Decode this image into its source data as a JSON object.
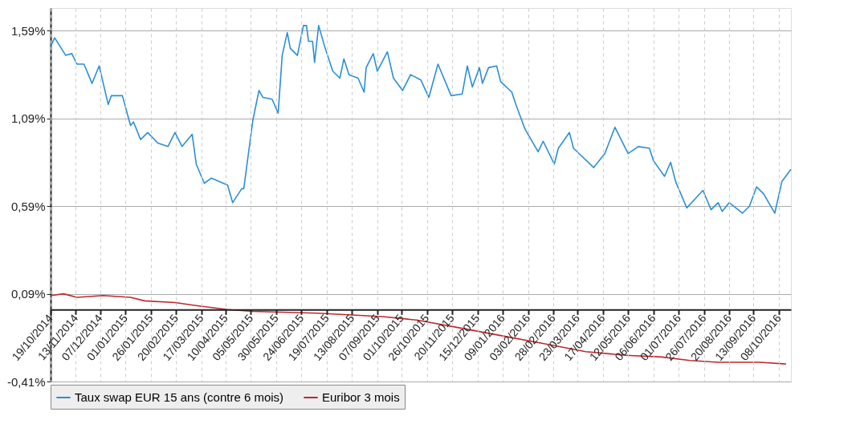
{
  "chart_data": {
    "type": "line",
    "xlim": [
      "2014-10-19",
      "2016-10-20"
    ],
    "ylim": [
      -0.41,
      1.72
    ],
    "yticks": [
      {
        "value": 1.59,
        "label": "1,59%"
      },
      {
        "value": 1.09,
        "label": "1,09%"
      },
      {
        "value": 0.59,
        "label": "0,59%"
      },
      {
        "value": 0.09,
        "label": "0,09%"
      },
      {
        "value": -0.41,
        "label": "-0,41%"
      }
    ],
    "xticks": [
      {
        "value": "2014-10-19",
        "label": "19/10/2014"
      },
      {
        "value": "2014-11-13",
        "label": "13/11/2014"
      },
      {
        "value": "2014-12-07",
        "label": "07/12/2014"
      },
      {
        "value": "2015-01-01",
        "label": "01/01/2015"
      },
      {
        "value": "2015-01-26",
        "label": "26/01/2015"
      },
      {
        "value": "2015-02-20",
        "label": "20/02/2015"
      },
      {
        "value": "2015-03-17",
        "label": "17/03/2015"
      },
      {
        "value": "2015-04-10",
        "label": "10/04/2015"
      },
      {
        "value": "2015-05-05",
        "label": "05/05/2015"
      },
      {
        "value": "2015-05-30",
        "label": "30/05/2015"
      },
      {
        "value": "2015-06-24",
        "label": "24/06/2015"
      },
      {
        "value": "2015-07-19",
        "label": "19/07/2015"
      },
      {
        "value": "2015-08-13",
        "label": "13/08/2015"
      },
      {
        "value": "2015-09-07",
        "label": "07/09/2015"
      },
      {
        "value": "2015-10-01",
        "label": "01/10/2015"
      },
      {
        "value": "2015-10-26",
        "label": "26/10/2015"
      },
      {
        "value": "2015-11-20",
        "label": "20/11/2015"
      },
      {
        "value": "2015-12-15",
        "label": "15/12/2015"
      },
      {
        "value": "2016-01-09",
        "label": "09/01/2016"
      },
      {
        "value": "2016-02-03",
        "label": "03/02/2016"
      },
      {
        "value": "2016-02-28",
        "label": "28/02/2016"
      },
      {
        "value": "2016-03-23",
        "label": "23/03/2016"
      },
      {
        "value": "2016-04-17",
        "label": "17/04/2016"
      },
      {
        "value": "2016-05-12",
        "label": "12/05/2016"
      },
      {
        "value": "2016-06-06",
        "label": "06/06/2016"
      },
      {
        "value": "2016-07-01",
        "label": "01/07/2016"
      },
      {
        "value": "2016-07-26",
        "label": "26/07/2016"
      },
      {
        "value": "2016-08-20",
        "label": "20/08/2016"
      },
      {
        "value": "2016-09-13",
        "label": "13/09/2016"
      },
      {
        "value": "2016-10-08",
        "label": "08/10/2016"
      }
    ],
    "grid": true,
    "legend": "bottom",
    "series": [
      {
        "name": "Taux swap EUR 15 ans (contre 6 mois)",
        "color": "#2b8fd6",
        "x": [
          "2014-10-19",
          "2014-10-23",
          "2014-11-03",
          "2014-11-09",
          "2014-11-14",
          "2014-11-21",
          "2014-11-29",
          "2014-12-06",
          "2014-12-15",
          "2014-12-18",
          "2014-12-29",
          "2015-01-06",
          "2015-01-09",
          "2015-01-16",
          "2015-01-23",
          "2015-02-02",
          "2015-02-12",
          "2015-02-19",
          "2015-02-26",
          "2015-03-08",
          "2015-03-12",
          "2015-03-20",
          "2015-03-27",
          "2015-04-12",
          "2015-04-17",
          "2015-04-26",
          "2015-04-28",
          "2015-05-07",
          "2015-05-13",
          "2015-05-17",
          "2015-05-26",
          "2015-06-01",
          "2015-06-05",
          "2015-06-10",
          "2015-06-13",
          "2015-06-20",
          "2015-06-26",
          "2015-06-29",
          "2015-07-01",
          "2015-07-05",
          "2015-07-07",
          "2015-07-11",
          "2015-07-17",
          "2015-07-25",
          "2015-08-01",
          "2015-08-05",
          "2015-08-10",
          "2015-08-19",
          "2015-08-25",
          "2015-08-27",
          "2015-09-03",
          "2015-09-07",
          "2015-09-17",
          "2015-09-23",
          "2015-10-02",
          "2015-10-10",
          "2015-10-20",
          "2015-10-28",
          "2015-11-06",
          "2015-11-19",
          "2015-11-30",
          "2015-12-05",
          "2015-12-10",
          "2015-12-17",
          "2015-12-20",
          "2015-12-26",
          "2016-01-03",
          "2016-01-07",
          "2016-01-18",
          "2016-01-22",
          "2016-01-31",
          "2016-02-13",
          "2016-02-18",
          "2016-02-29",
          "2016-03-04",
          "2016-03-15",
          "2016-03-19",
          "2016-04-08",
          "2016-04-19",
          "2016-04-29",
          "2016-05-12",
          "2016-05-22",
          "2016-06-02",
          "2016-06-06",
          "2016-06-17",
          "2016-06-23",
          "2016-06-28",
          "2016-07-09",
          "2016-07-25",
          "2016-08-02",
          "2016-08-09",
          "2016-08-13",
          "2016-08-20",
          "2016-09-02",
          "2016-09-09",
          "2016-09-16",
          "2016-09-23",
          "2016-10-04",
          "2016-10-11",
          "2016-10-20"
        ],
        "values": [
          1.5,
          1.55,
          1.45,
          1.46,
          1.4,
          1.4,
          1.29,
          1.39,
          1.17,
          1.22,
          1.22,
          1.05,
          1.07,
          0.97,
          1.01,
          0.95,
          0.93,
          1.01,
          0.93,
          1.0,
          0.83,
          0.72,
          0.75,
          0.71,
          0.61,
          0.69,
          0.69,
          1.08,
          1.25,
          1.21,
          1.2,
          1.12,
          1.45,
          1.58,
          1.49,
          1.45,
          1.62,
          1.62,
          1.53,
          1.53,
          1.41,
          1.62,
          1.5,
          1.36,
          1.32,
          1.43,
          1.34,
          1.32,
          1.24,
          1.38,
          1.46,
          1.36,
          1.47,
          1.32,
          1.25,
          1.34,
          1.31,
          1.21,
          1.4,
          1.22,
          1.23,
          1.39,
          1.27,
          1.38,
          1.29,
          1.38,
          1.39,
          1.3,
          1.24,
          1.17,
          1.03,
          0.9,
          0.96,
          0.83,
          0.92,
          1.01,
          0.92,
          0.81,
          0.89,
          1.04,
          0.89,
          0.93,
          0.92,
          0.85,
          0.76,
          0.84,
          0.73,
          0.58,
          0.68,
          0.57,
          0.61,
          0.56,
          0.61,
          0.55,
          0.59,
          0.7,
          0.66,
          0.55,
          0.73,
          0.8
        ]
      },
      {
        "name": "Euribor 3 mois",
        "color": "#c0272d",
        "x": [
          "2014-10-19",
          "2014-11-01",
          "2014-11-14",
          "2014-12-10",
          "2015-01-06",
          "2015-01-20",
          "2015-02-19",
          "2015-03-16",
          "2015-04-12",
          "2015-05-07",
          "2015-07-10",
          "2015-09-12",
          "2015-10-17",
          "2015-12-03",
          "2016-01-09",
          "2016-02-24",
          "2016-03-31",
          "2016-05-09",
          "2016-06-14",
          "2016-07-12",
          "2016-08-09",
          "2016-09-19",
          "2016-10-15"
        ],
        "values": [
          0.08,
          0.09,
          0.07,
          0.08,
          0.07,
          0.05,
          0.04,
          0.02,
          0.0,
          -0.01,
          -0.02,
          -0.04,
          -0.06,
          -0.11,
          -0.15,
          -0.2,
          -0.24,
          -0.26,
          -0.27,
          -0.29,
          -0.3,
          -0.3,
          -0.31
        ]
      }
    ]
  }
}
